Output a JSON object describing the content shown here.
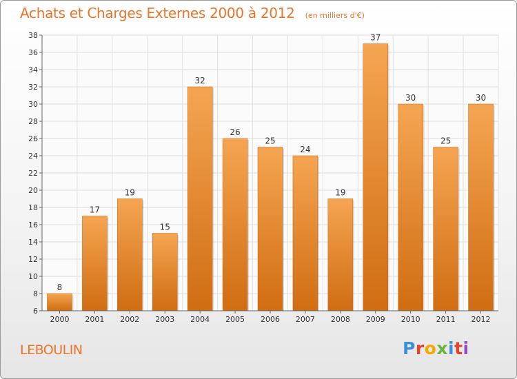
{
  "title": "Achats et Charges Externes 2000 à 2012",
  "subtitle": "(en milliers d'€)",
  "commune": "LEBOULIN",
  "logo": {
    "letters": [
      "P",
      "r",
      "o",
      "x",
      "i",
      "t",
      "i"
    ],
    "colors": [
      "#3b8fd9",
      "#e0452b",
      "#f2a900",
      "#6ab43e",
      "#3b8fd9",
      "#e0452b",
      "#8c4fc0"
    ]
  },
  "colors": {
    "bar_top": "#f5a552",
    "bar_bottom": "#d06d12",
    "accent": "#e8752a"
  },
  "chart_data": {
    "type": "bar",
    "categories": [
      "2000",
      "2001",
      "2002",
      "2003",
      "2004",
      "2005",
      "2006",
      "2007",
      "2008",
      "2009",
      "2010",
      "2011",
      "2012"
    ],
    "values": [
      8,
      17,
      19,
      15,
      32,
      26,
      25,
      24,
      19,
      37,
      30,
      25,
      30
    ],
    "ylim": [
      6,
      38
    ],
    "yticks": [
      6,
      8,
      10,
      12,
      14,
      16,
      18,
      20,
      22,
      24,
      26,
      28,
      30,
      32,
      34,
      36,
      38
    ],
    "grid": true,
    "title": "Achats et Charges Externes 2000 à 2012",
    "xlabel": "",
    "ylabel": ""
  }
}
